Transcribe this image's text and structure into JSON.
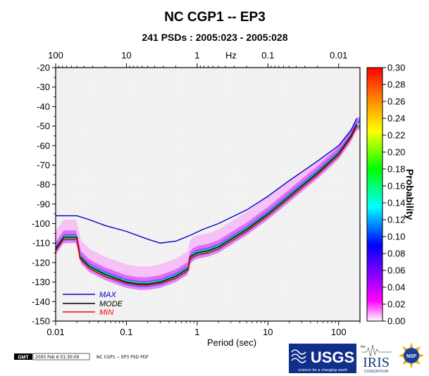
{
  "chart_data": {
    "type": "heatmap",
    "title": "NC CGP1 -- EP3",
    "subtitle": "241 PSDs : 2005:023 - 2005:028",
    "xlabel": "Period (sec)",
    "x2label": "Hz",
    "ylabel": "",
    "xscale": "log",
    "xlim": [
      0.01,
      200
    ],
    "ylim": [
      -150,
      -20
    ],
    "x_ticks": [
      "0.01",
      "0.1",
      "1",
      "10",
      "100"
    ],
    "x2_ticks": [
      "100",
      "10",
      "1",
      "0.1",
      "0.01"
    ],
    "y_ticks": [
      "-20",
      "-30",
      "-40",
      "-50",
      "-60",
      "-70",
      "-80",
      "-90",
      "-100",
      "-110",
      "-120",
      "-130",
      "-140",
      "-150"
    ],
    "colorbar": {
      "label": "Probability",
      "range": [
        0.0,
        0.3
      ],
      "ticks": [
        "0.30",
        "0.28",
        "0.26",
        "0.24",
        "0.22",
        "0.20",
        "0.18",
        "0.16",
        "0.14",
        "0.12",
        "0.10",
        "0.08",
        "0.06",
        "0.04",
        "0.02",
        "0.00"
      ],
      "colors": [
        "#ffffff",
        "#ff00ff",
        "#0000ff",
        "#00ffff",
        "#00ff00",
        "#ffff00",
        "#ff8000",
        "#ff0000"
      ]
    },
    "series": [
      {
        "name": "MAX",
        "color": "#0000cc",
        "x": [
          0.01,
          0.02,
          0.03,
          0.05,
          0.1,
          0.2,
          0.3,
          0.5,
          0.8,
          1.2,
          2,
          5,
          10,
          20,
          50,
          100,
          150,
          180
        ],
        "y": [
          -96,
          -96,
          -98,
          -101,
          -104,
          -108,
          -110,
          -109,
          -106,
          -103,
          -100,
          -93,
          -86,
          -78,
          -68,
          -60,
          -52,
          -46
        ]
      },
      {
        "name": "MODE",
        "color": "#000000",
        "x": [
          0.01,
          0.013,
          0.02,
          0.022,
          0.03,
          0.05,
          0.1,
          0.15,
          0.2,
          0.3,
          0.5,
          0.75,
          0.8,
          1,
          1.4,
          2,
          3,
          5,
          10,
          20,
          50,
          100,
          150,
          180
        ],
        "y": [
          -113,
          -107,
          -107,
          -117,
          -122,
          -126,
          -130,
          -131,
          -131,
          -130,
          -127,
          -123,
          -117,
          -115,
          -114,
          -112,
          -108,
          -103,
          -95,
          -86,
          -74,
          -64,
          -55,
          -49
        ]
      },
      {
        "name": "MIN",
        "color": "#ff0000",
        "x": [
          0.01,
          0.013,
          0.02,
          0.022,
          0.03,
          0.05,
          0.1,
          0.15,
          0.2,
          0.3,
          0.5,
          0.75,
          0.8,
          1,
          1.4,
          2,
          3,
          5,
          10,
          20,
          50,
          100,
          150,
          180
        ],
        "y": [
          -114,
          -108,
          -108,
          -118,
          -123,
          -127,
          -130.5,
          -131.5,
          -131.5,
          -130.5,
          -128,
          -124,
          -118,
          -116,
          -115,
          -113,
          -109,
          -104,
          -96,
          -87,
          -75,
          -65,
          -56,
          -50
        ]
      }
    ],
    "grid": false,
    "legend_position": "bottom-left"
  },
  "footer": {
    "gmt_logo": "GMT",
    "timestamp": "2005 Feb  6 01:30:09",
    "caption": "NC CGP1 -- EP3 PSD PDF"
  },
  "logos": {
    "usgs": "USGS",
    "usgs_tagline": "science for a changing world",
    "iris_small": "the",
    "iris": "IRIS",
    "iris_sub": "CONSORTIUM",
    "nsf": "NSF"
  }
}
